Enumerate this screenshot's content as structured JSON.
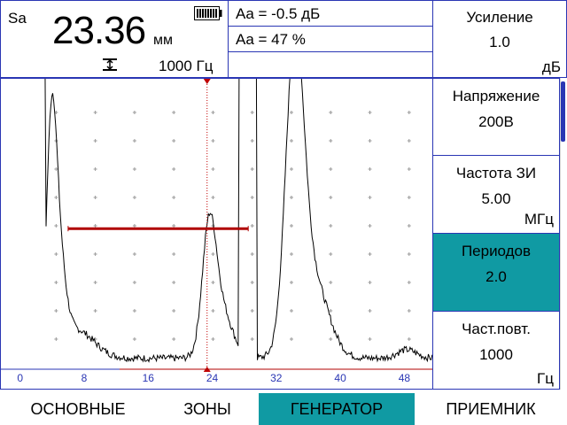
{
  "header": {
    "mode": "Sa",
    "distance_value": "23.36",
    "distance_unit": "мм",
    "frequency": "1000 Гц",
    "battery_icon": "battery-full-icon",
    "freq_icon": "pulse-period-icon"
  },
  "readings": [
    "Aa = -0.5 дБ",
    "Aa = 47 %"
  ],
  "gain": {
    "label": "Усиление",
    "value": "1.0",
    "unit": "дБ"
  },
  "params": [
    {
      "label": "Напряжение",
      "value": "200В",
      "unit": ""
    },
    {
      "label": "Частота ЗИ",
      "value": "5.00",
      "unit": "МГц"
    },
    {
      "label": "Периодов",
      "value": "2.0",
      "unit": ""
    },
    {
      "label": "Част.повт.",
      "value": "1000",
      "unit": "Гц"
    }
  ],
  "scan": {
    "x_ticks": [
      "0",
      "8",
      "16",
      "24",
      "32",
      "40",
      "48"
    ],
    "x_tick_values": [
      0,
      8,
      16,
      24,
      32,
      40,
      48
    ],
    "x_range": [
      -2.4,
      51.5
    ],
    "gate_start": 6,
    "gate_end": 28.5,
    "gate_level_percent": 49,
    "cursor_position": 23.36,
    "gate_color": "#b00000",
    "cursor_color": "#c00000",
    "tick_label_color": "#2a36b4"
  },
  "tabs": [
    {
      "label": "ОСНОВНЫЕ",
      "active": false
    },
    {
      "label": "ЗОНЫ",
      "active": false
    },
    {
      "label": "ГЕНЕРАТОР",
      "active": true
    },
    {
      "label": "ПРИЕМНИК",
      "active": false
    }
  ],
  "colors": {
    "accent": "#109aa3",
    "border": "#2a36b4"
  }
}
